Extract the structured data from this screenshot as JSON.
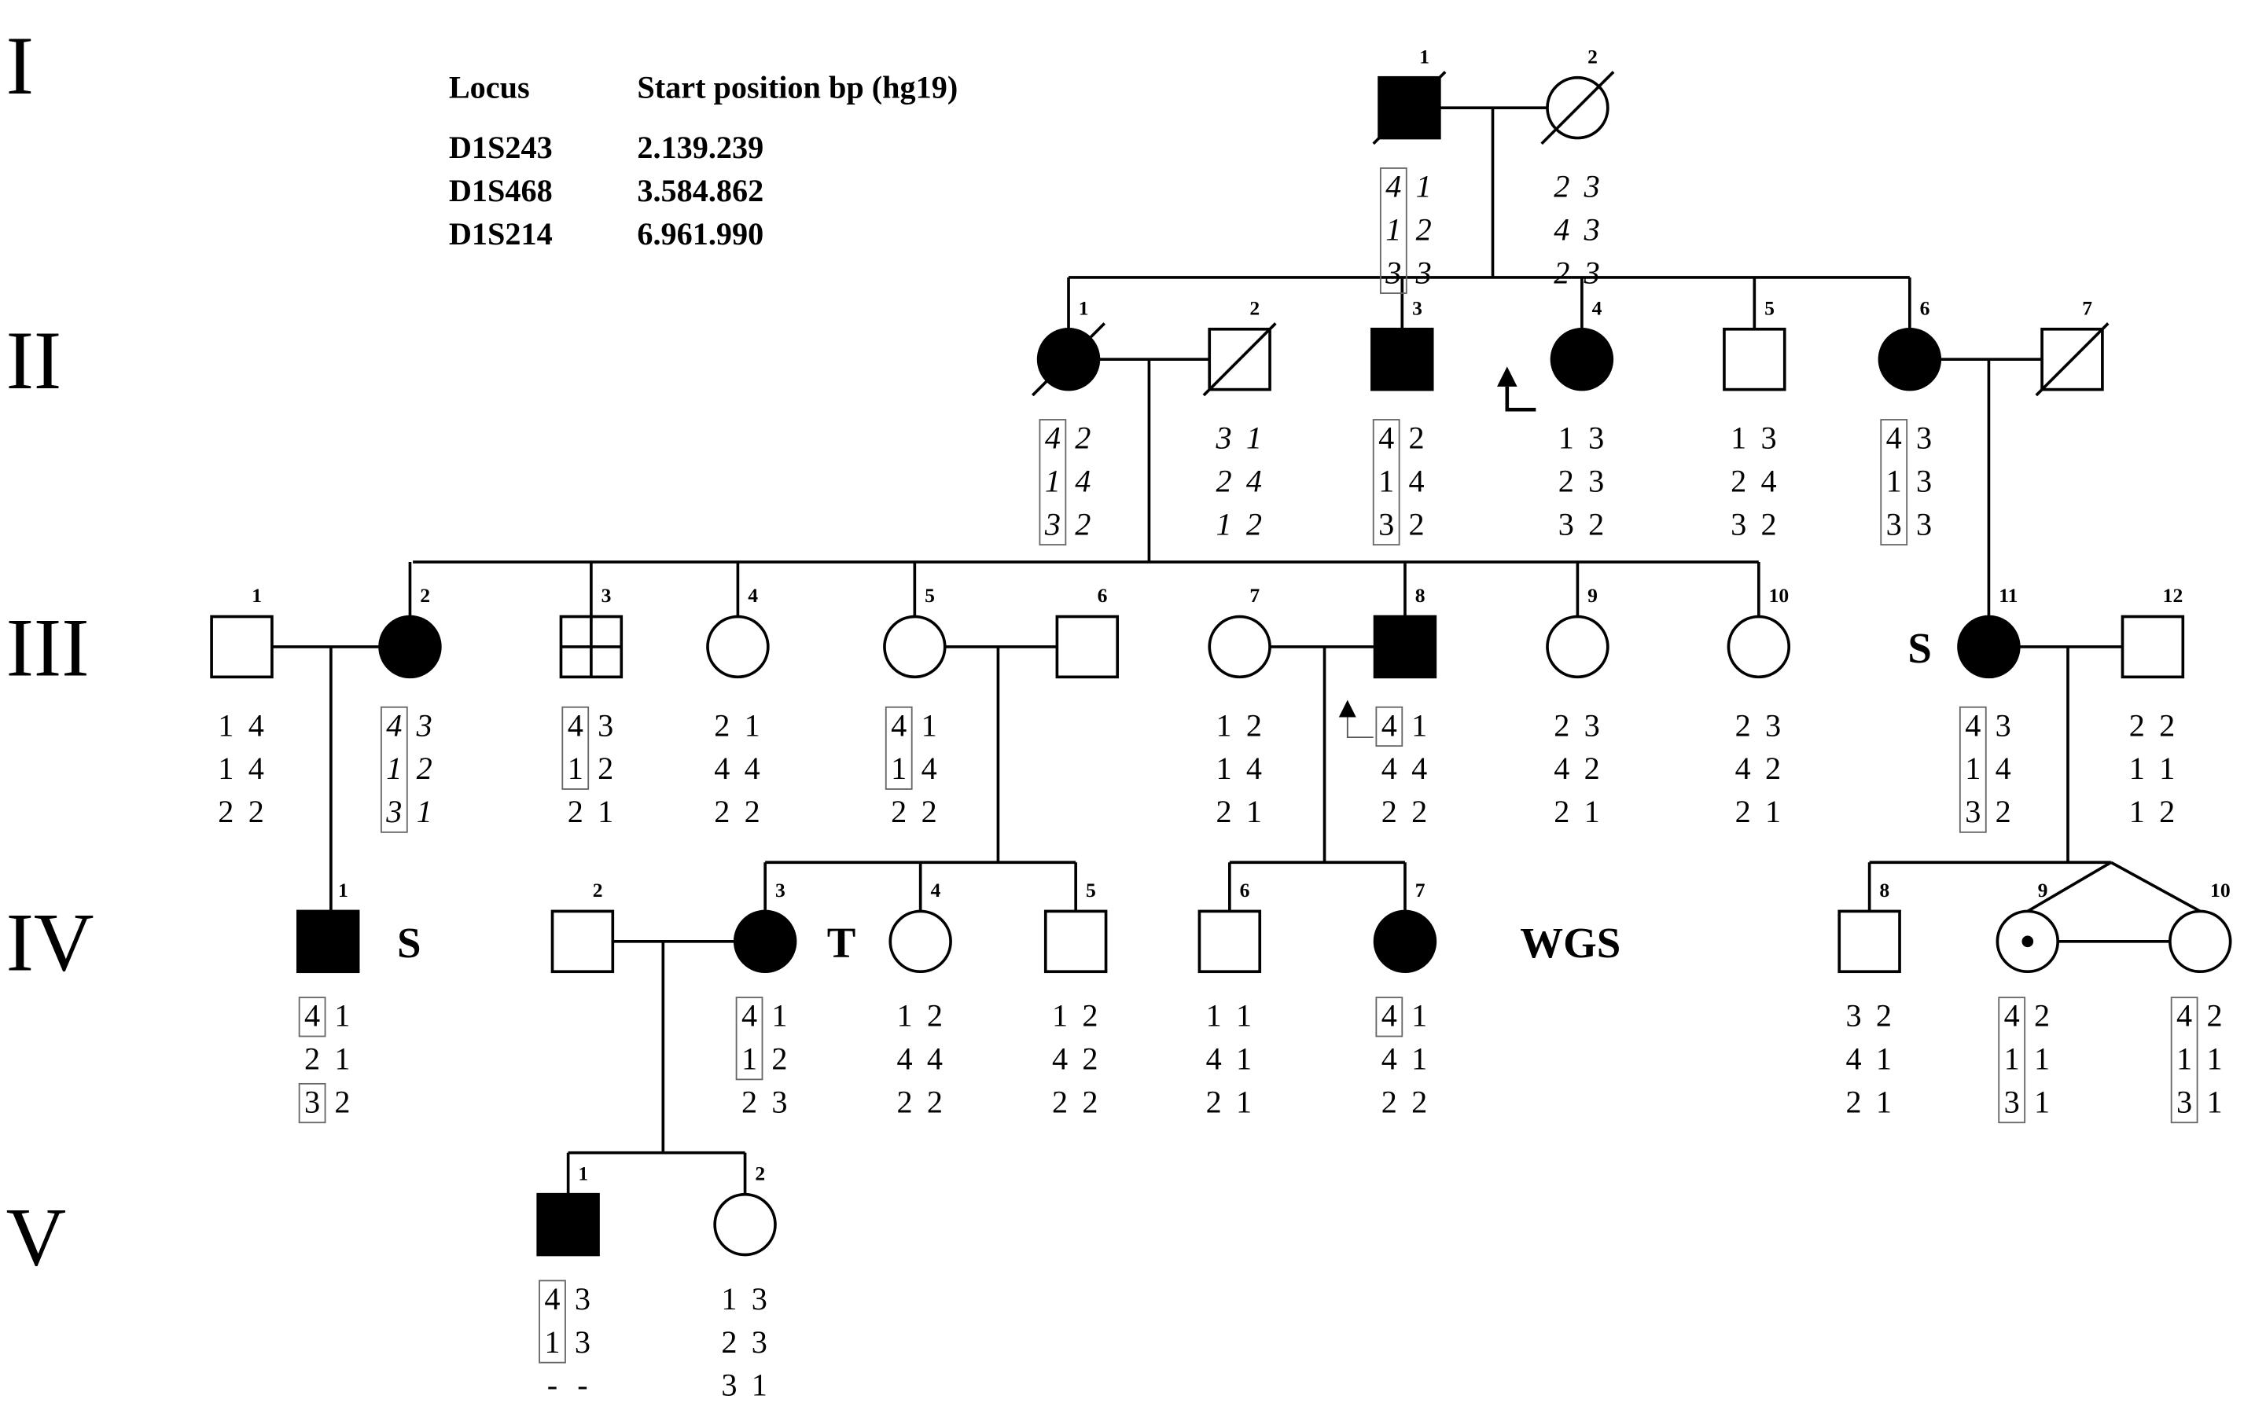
{
  "generations": [
    "I",
    "II",
    "III",
    "IV",
    "V"
  ],
  "legend": {
    "header_locus": "Locus",
    "header_position": "Start position  bp (hg19)",
    "rows": [
      {
        "locus": "D1S243",
        "position": "2.139.239"
      },
      {
        "locus": "D1S468",
        "position": "3.584.862"
      },
      {
        "locus": "D1S214",
        "position": "6.961.990"
      }
    ]
  },
  "colors": {
    "affected": "#000000",
    "unaffected": "#ffffff",
    "line": "#000000"
  },
  "individuals": [
    {
      "id": "I-1",
      "num": "1",
      "sex": "male",
      "affected": true,
      "deceased": true,
      "italic": true,
      "alleles": [
        [
          "4",
          "1"
        ],
        [
          "1",
          "2"
        ],
        [
          "3",
          "3"
        ]
      ],
      "boxed": [
        true,
        true,
        true
      ]
    },
    {
      "id": "I-2",
      "num": "2",
      "sex": "female",
      "affected": false,
      "deceased": true,
      "italic": true,
      "alleles": [
        [
          "2",
          "3"
        ],
        [
          "4",
          "3"
        ],
        [
          "2",
          "3"
        ]
      ],
      "boxed": [
        false,
        false,
        false
      ]
    },
    {
      "id": "II-1",
      "num": "1",
      "sex": "female",
      "affected": true,
      "deceased": true,
      "italic": true,
      "alleles": [
        [
          "4",
          "2"
        ],
        [
          "1",
          "4"
        ],
        [
          "3",
          "2"
        ]
      ],
      "boxed": [
        true,
        true,
        true
      ]
    },
    {
      "id": "II-2",
      "num": "2",
      "sex": "male",
      "affected": false,
      "deceased": true,
      "italic": true,
      "alleles": [
        [
          "3",
          "1"
        ],
        [
          "2",
          "4"
        ],
        [
          "1",
          "2"
        ]
      ],
      "boxed": [
        false,
        false,
        false
      ]
    },
    {
      "id": "II-3",
      "num": "3",
      "sex": "male",
      "affected": true,
      "deceased": false,
      "italic": false,
      "alleles": [
        [
          "4",
          "2"
        ],
        [
          "1",
          "4"
        ],
        [
          "3",
          "2"
        ]
      ],
      "boxed": [
        true,
        true,
        true
      ]
    },
    {
      "id": "II-4",
      "num": "4",
      "sex": "female",
      "affected": true,
      "deceased": false,
      "italic": false,
      "proband": true,
      "alleles": [
        [
          "1",
          "3"
        ],
        [
          "2",
          "3"
        ],
        [
          "3",
          "2"
        ]
      ],
      "boxed": [
        false,
        false,
        false
      ]
    },
    {
      "id": "II-5",
      "num": "5",
      "sex": "male",
      "affected": false,
      "deceased": false,
      "italic": false,
      "alleles": [
        [
          "1",
          "3"
        ],
        [
          "2",
          "4"
        ],
        [
          "3",
          "2"
        ]
      ],
      "boxed": [
        false,
        false,
        false
      ]
    },
    {
      "id": "II-6",
      "num": "6",
      "sex": "female",
      "affected": true,
      "deceased": false,
      "italic": false,
      "alleles": [
        [
          "4",
          "3"
        ],
        [
          "1",
          "3"
        ],
        [
          "3",
          "3"
        ]
      ],
      "boxed": [
        true,
        true,
        true
      ]
    },
    {
      "id": "II-7",
      "num": "7",
      "sex": "male",
      "affected": false,
      "deceased": true,
      "italic": false,
      "alleles": [],
      "boxed": []
    },
    {
      "id": "III-1",
      "num": "1",
      "sex": "male",
      "affected": false,
      "deceased": false,
      "italic": false,
      "alleles": [
        [
          "1",
          "4"
        ],
        [
          "1",
          "4"
        ],
        [
          "2",
          "2"
        ]
      ],
      "boxed": [
        false,
        false,
        false
      ]
    },
    {
      "id": "III-2",
      "num": "2",
      "sex": "female",
      "affected": true,
      "deceased": false,
      "italic": true,
      "alleles": [
        [
          "4",
          "3"
        ],
        [
          "1",
          "2"
        ],
        [
          "3",
          "1"
        ]
      ],
      "boxed": [
        true,
        true,
        true
      ]
    },
    {
      "id": "III-3",
      "num": "3",
      "sex": "male",
      "affected": false,
      "deceased": false,
      "italic": false,
      "quadrant": true,
      "alleles": [
        [
          "4",
          "3"
        ],
        [
          "1",
          "2"
        ],
        [
          "2",
          "1"
        ]
      ],
      "boxed": [
        true,
        true,
        false
      ]
    },
    {
      "id": "III-4",
      "num": "4",
      "sex": "female",
      "affected": false,
      "deceased": false,
      "italic": false,
      "alleles": [
        [
          "2",
          "1"
        ],
        [
          "4",
          "4"
        ],
        [
          "2",
          "2"
        ]
      ],
      "boxed": [
        false,
        false,
        false
      ]
    },
    {
      "id": "III-5",
      "num": "5",
      "sex": "female",
      "affected": false,
      "deceased": false,
      "italic": false,
      "alleles": [
        [
          "4",
          "1"
        ],
        [
          "1",
          "4"
        ],
        [
          "2",
          "2"
        ]
      ],
      "boxed": [
        true,
        true,
        false
      ]
    },
    {
      "id": "III-6",
      "num": "6",
      "sex": "male",
      "affected": false,
      "deceased": false,
      "italic": false,
      "alleles": [],
      "boxed": []
    },
    {
      "id": "III-7",
      "num": "7",
      "sex": "female",
      "affected": false,
      "deceased": false,
      "italic": false,
      "alleles": [
        [
          "1",
          "2"
        ],
        [
          "1",
          "4"
        ],
        [
          "2",
          "1"
        ]
      ],
      "boxed": [
        false,
        false,
        false
      ]
    },
    {
      "id": "III-8",
      "num": "8",
      "sex": "male",
      "affected": true,
      "deceased": false,
      "italic": false,
      "proband": true,
      "alleles": [
        [
          "4",
          "1"
        ],
        [
          "4",
          "4"
        ],
        [
          "2",
          "2"
        ]
      ],
      "boxed": [
        true,
        false,
        false
      ]
    },
    {
      "id": "III-9",
      "num": "9",
      "sex": "female",
      "affected": false,
      "deceased": false,
      "italic": false,
      "alleles": [
        [
          "2",
          "3"
        ],
        [
          "4",
          "2"
        ],
        [
          "2",
          "1"
        ]
      ],
      "boxed": [
        false,
        false,
        false
      ]
    },
    {
      "id": "III-10",
      "num": "10",
      "sex": "female",
      "affected": false,
      "deceased": false,
      "italic": false,
      "alleles": [
        [
          "2",
          "3"
        ],
        [
          "4",
          "2"
        ],
        [
          "2",
          "1"
        ]
      ],
      "boxed": [
        false,
        false,
        false
      ]
    },
    {
      "id": "III-11",
      "num": "11",
      "sex": "female",
      "affected": true,
      "deceased": false,
      "italic": false,
      "tag": "S",
      "alleles": [
        [
          "4",
          "3"
        ],
        [
          "1",
          "4"
        ],
        [
          "3",
          "2"
        ]
      ],
      "boxed": [
        true,
        true,
        true
      ]
    },
    {
      "id": "III-12",
      "num": "12",
      "sex": "male",
      "affected": false,
      "deceased": false,
      "italic": false,
      "alleles": [
        [
          "2",
          "2"
        ],
        [
          "1",
          "1"
        ],
        [
          "1",
          "2"
        ]
      ],
      "boxed": [
        false,
        false,
        false
      ]
    },
    {
      "id": "IV-1",
      "num": "1",
      "sex": "male",
      "affected": true,
      "deceased": false,
      "italic": false,
      "tag": "S",
      "alleles": [
        [
          "4",
          "1"
        ],
        [
          "2",
          "1"
        ],
        [
          "3",
          "2"
        ]
      ],
      "boxed": [
        true,
        false,
        true
      ]
    },
    {
      "id": "IV-2",
      "num": "2",
      "sex": "male",
      "affected": false,
      "deceased": false,
      "italic": false,
      "alleles": [],
      "boxed": []
    },
    {
      "id": "IV-3",
      "num": "3",
      "sex": "female",
      "affected": true,
      "deceased": false,
      "italic": false,
      "tag": "T",
      "alleles": [
        [
          "4",
          "1"
        ],
        [
          "1",
          "2"
        ],
        [
          "2",
          "3"
        ]
      ],
      "boxed": [
        true,
        true,
        false
      ]
    },
    {
      "id": "IV-4",
      "num": "4",
      "sex": "female",
      "affected": false,
      "deceased": false,
      "italic": false,
      "alleles": [
        [
          "1",
          "2"
        ],
        [
          "4",
          "4"
        ],
        [
          "2",
          "2"
        ]
      ],
      "boxed": [
        false,
        false,
        false
      ]
    },
    {
      "id": "IV-5",
      "num": "5",
      "sex": "male",
      "affected": false,
      "deceased": false,
      "italic": false,
      "alleles": [
        [
          "1",
          "2"
        ],
        [
          "4",
          "2"
        ],
        [
          "2",
          "2"
        ]
      ],
      "boxed": [
        false,
        false,
        false
      ]
    },
    {
      "id": "IV-6",
      "num": "6",
      "sex": "male",
      "affected": false,
      "deceased": false,
      "italic": false,
      "alleles": [
        [
          "1",
          "1"
        ],
        [
          "4",
          "1"
        ],
        [
          "2",
          "1"
        ]
      ],
      "boxed": [
        false,
        false,
        false
      ]
    },
    {
      "id": "IV-7",
      "num": "7",
      "sex": "female",
      "affected": true,
      "deceased": false,
      "italic": false,
      "tag": "WGS",
      "alleles": [
        [
          "4",
          "1"
        ],
        [
          "4",
          "1"
        ],
        [
          "2",
          "2"
        ]
      ],
      "boxed": [
        true,
        false,
        false
      ]
    },
    {
      "id": "IV-8",
      "num": "8",
      "sex": "male",
      "affected": false,
      "deceased": false,
      "italic": false,
      "alleles": [
        [
          "3",
          "2"
        ],
        [
          "4",
          "1"
        ],
        [
          "2",
          "1"
        ]
      ],
      "boxed": [
        false,
        false,
        false
      ]
    },
    {
      "id": "IV-9",
      "num": "9",
      "sex": "female",
      "affected": false,
      "deceased": false,
      "italic": false,
      "carrier": true,
      "alleles": [
        [
          "4",
          "2"
        ],
        [
          "1",
          "1"
        ],
        [
          "3",
          "1"
        ]
      ],
      "boxed": [
        true,
        true,
        true
      ]
    },
    {
      "id": "IV-10",
      "num": "10",
      "sex": "female",
      "affected": false,
      "deceased": false,
      "italic": false,
      "alleles": [
        [
          "4",
          "2"
        ],
        [
          "1",
          "1"
        ],
        [
          "3",
          "1"
        ]
      ],
      "boxed": [
        true,
        true,
        true
      ]
    },
    {
      "id": "V-1",
      "num": "1",
      "sex": "male",
      "affected": true,
      "deceased": false,
      "italic": false,
      "alleles": [
        [
          "4",
          "3"
        ],
        [
          "1",
          "3"
        ],
        [
          "-",
          "-"
        ]
      ],
      "boxed": [
        true,
        true,
        false
      ]
    },
    {
      "id": "V-2",
      "num": "2",
      "sex": "female",
      "affected": false,
      "deceased": false,
      "italic": false,
      "alleles": [
        [
          "1",
          "3"
        ],
        [
          "2",
          "3"
        ],
        [
          "3",
          "1"
        ]
      ],
      "boxed": [
        false,
        false,
        false
      ]
    }
  ]
}
